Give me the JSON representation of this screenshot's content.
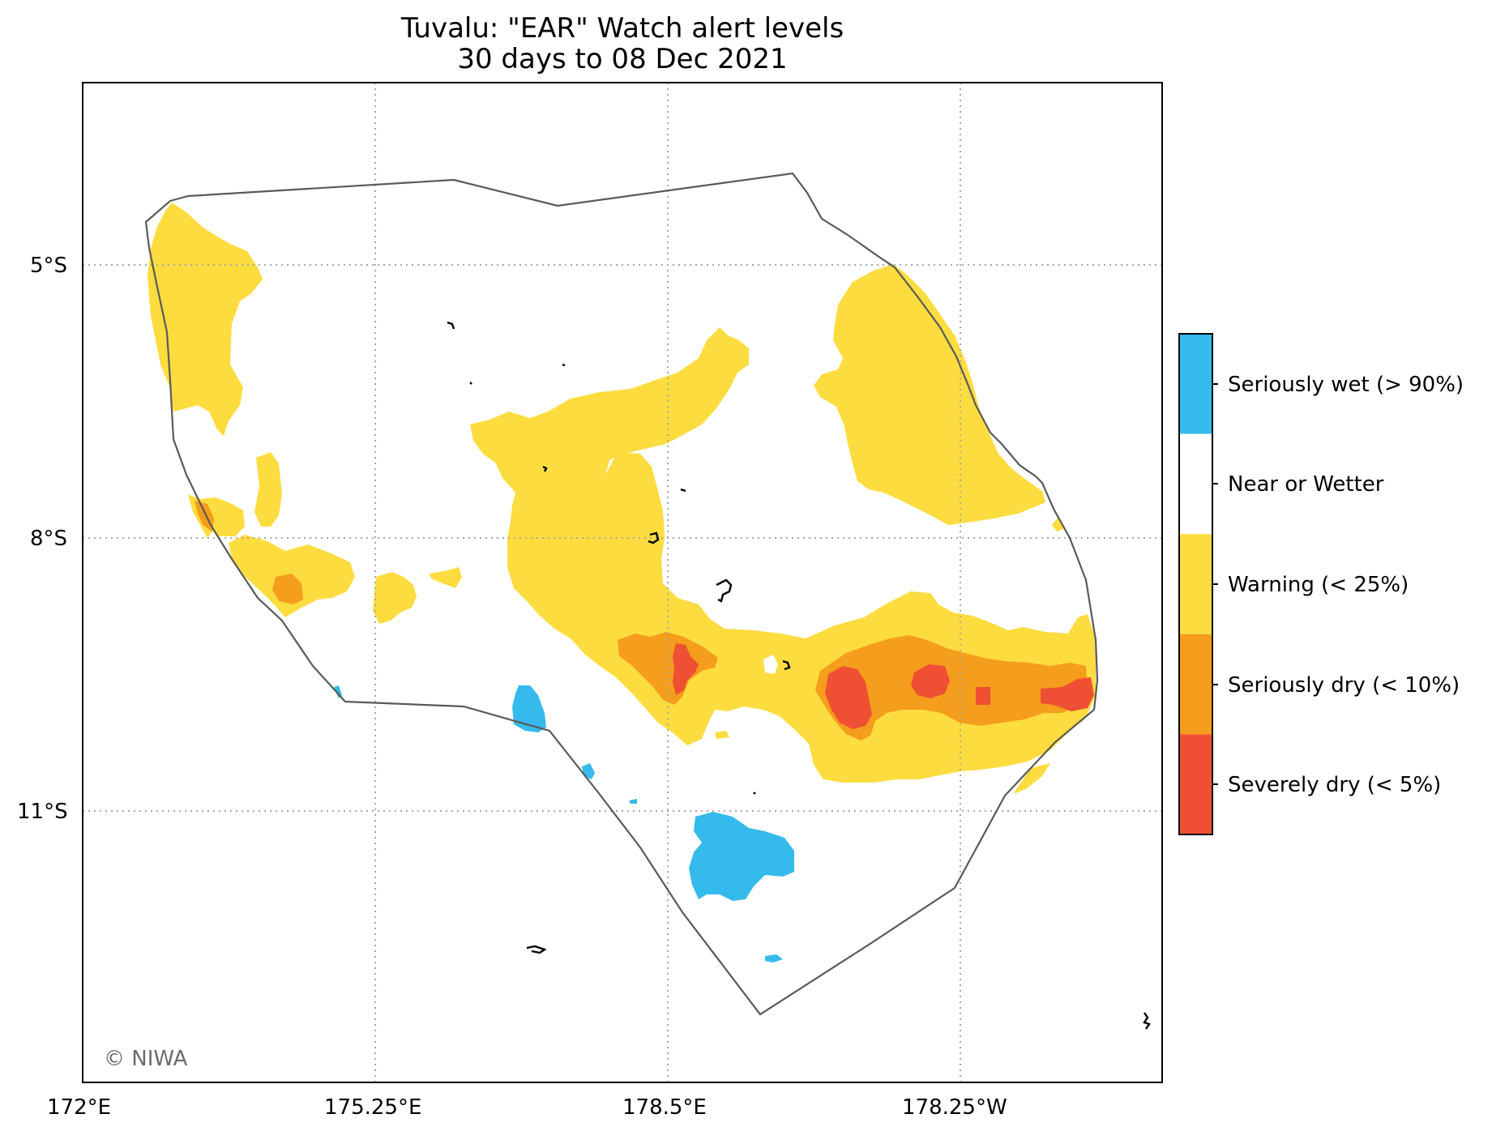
{
  "title": {
    "line1": "Tuvalu: \"EAR\" Watch alert levels",
    "line2": "30 days to 08 Dec 2021"
  },
  "axes": {
    "x_ticks": [
      "172°E",
      "175.25°E",
      "178.5°E",
      "178.25°W"
    ],
    "y_ticks": [
      "5°S",
      "8°S",
      "11°S"
    ],
    "gridlines": "dotted"
  },
  "legend": {
    "placement": "right",
    "items": [
      {
        "label": "Seriously wet (> 90%)",
        "color": "#35bbeb"
      },
      {
        "label": "Near or Wetter",
        "color": "#ffffff"
      },
      {
        "label": "Warning (< 25%)",
        "color": "#fddc3f"
      },
      {
        "label": "Seriously dry (< 10%)",
        "color": "#f59d1c"
      },
      {
        "label": "Severely dry (< 5%)",
        "color": "#ef5033"
      }
    ]
  },
  "credit": "© NIWA",
  "colors": {
    "boundary": "#5a5a5a",
    "grid": "#a8a8a8",
    "islands": "#000000",
    "credit_text": "#6b6b6b"
  }
}
